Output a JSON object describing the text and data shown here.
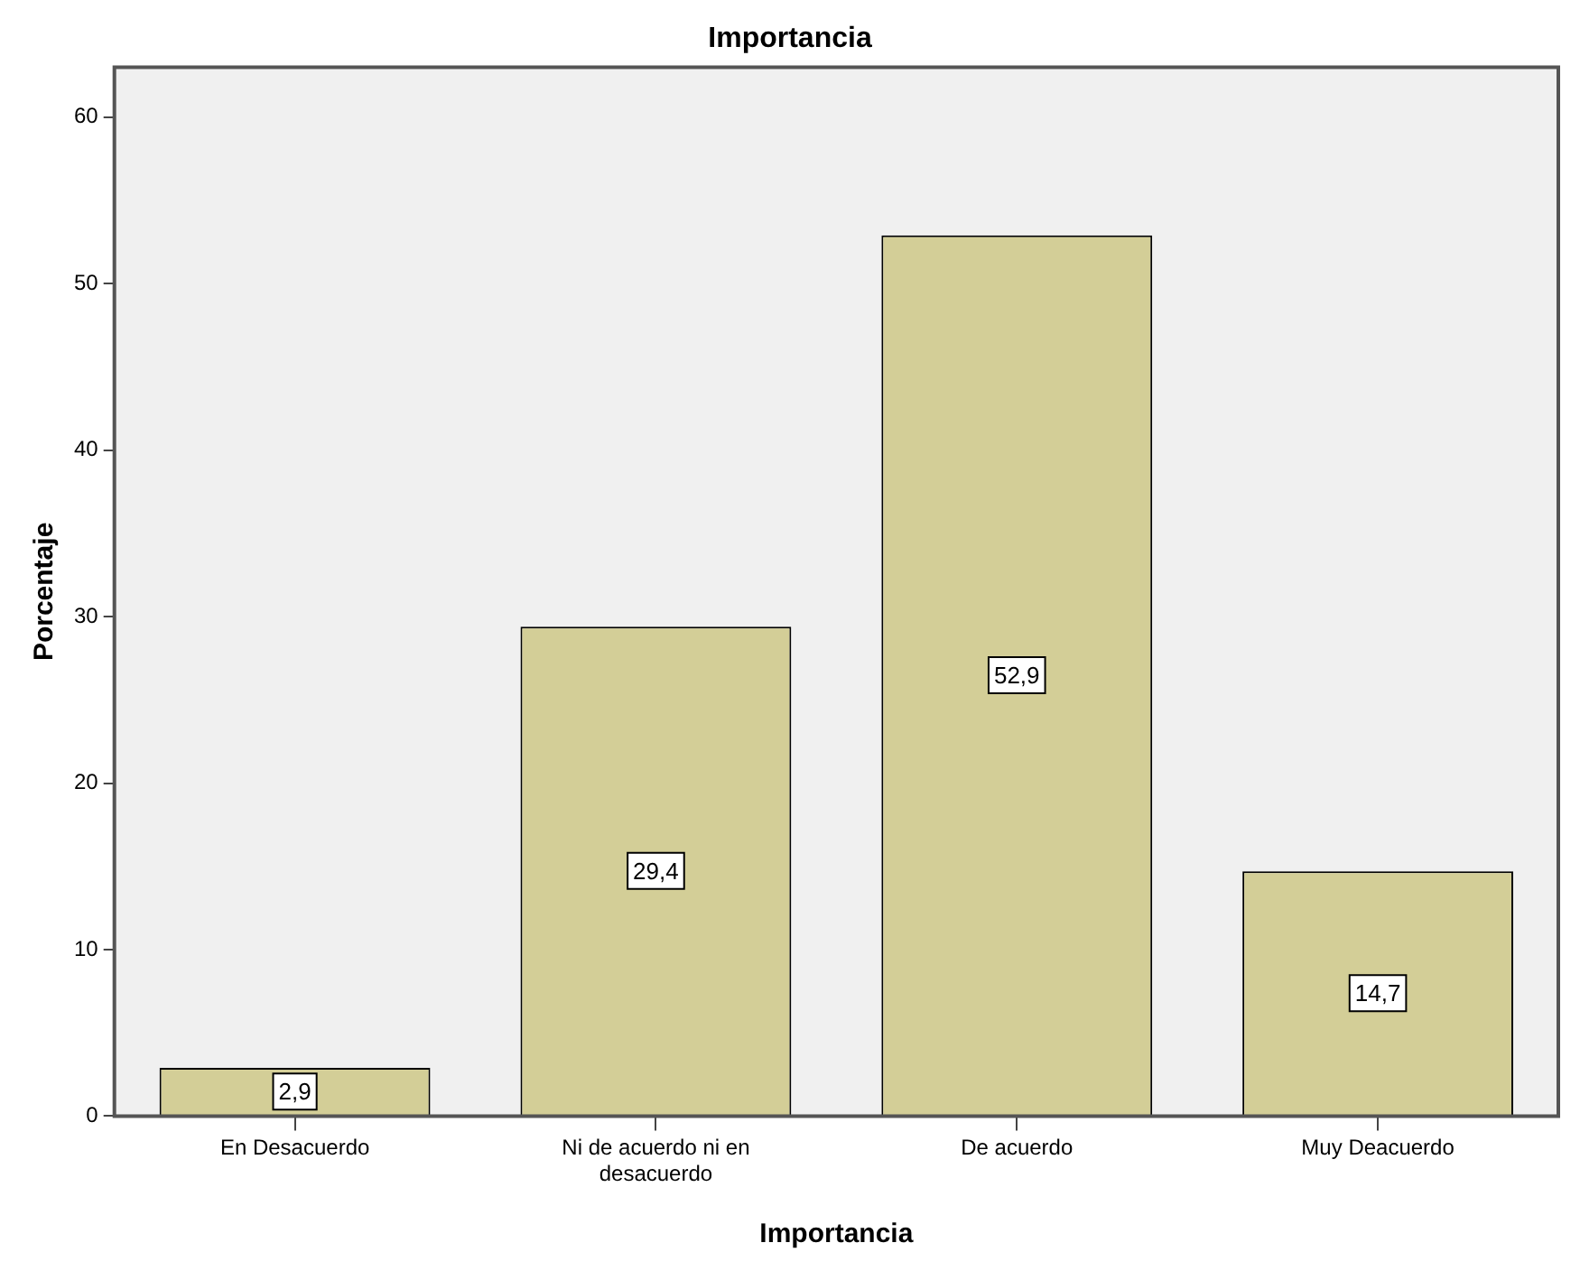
{
  "chart_data": {
    "type": "bar",
    "title": "Importancia",
    "xlabel": "Importancia",
    "ylabel": "Porcentaje",
    "categories": [
      "En Desacuerdo",
      "Ni de acuerdo ni en desacuerdo",
      "De acuerdo",
      "Muy Deacuerdo"
    ],
    "values": [
      2.9,
      29.4,
      52.9,
      14.7
    ],
    "value_labels": [
      "2,9",
      "29,4",
      "52,9",
      "14,7"
    ],
    "color": "#d3ce97",
    "ylim": [
      0,
      63
    ],
    "yticks": [
      0,
      10,
      20,
      30,
      40,
      50,
      60
    ],
    "grid": false,
    "legend": false
  }
}
